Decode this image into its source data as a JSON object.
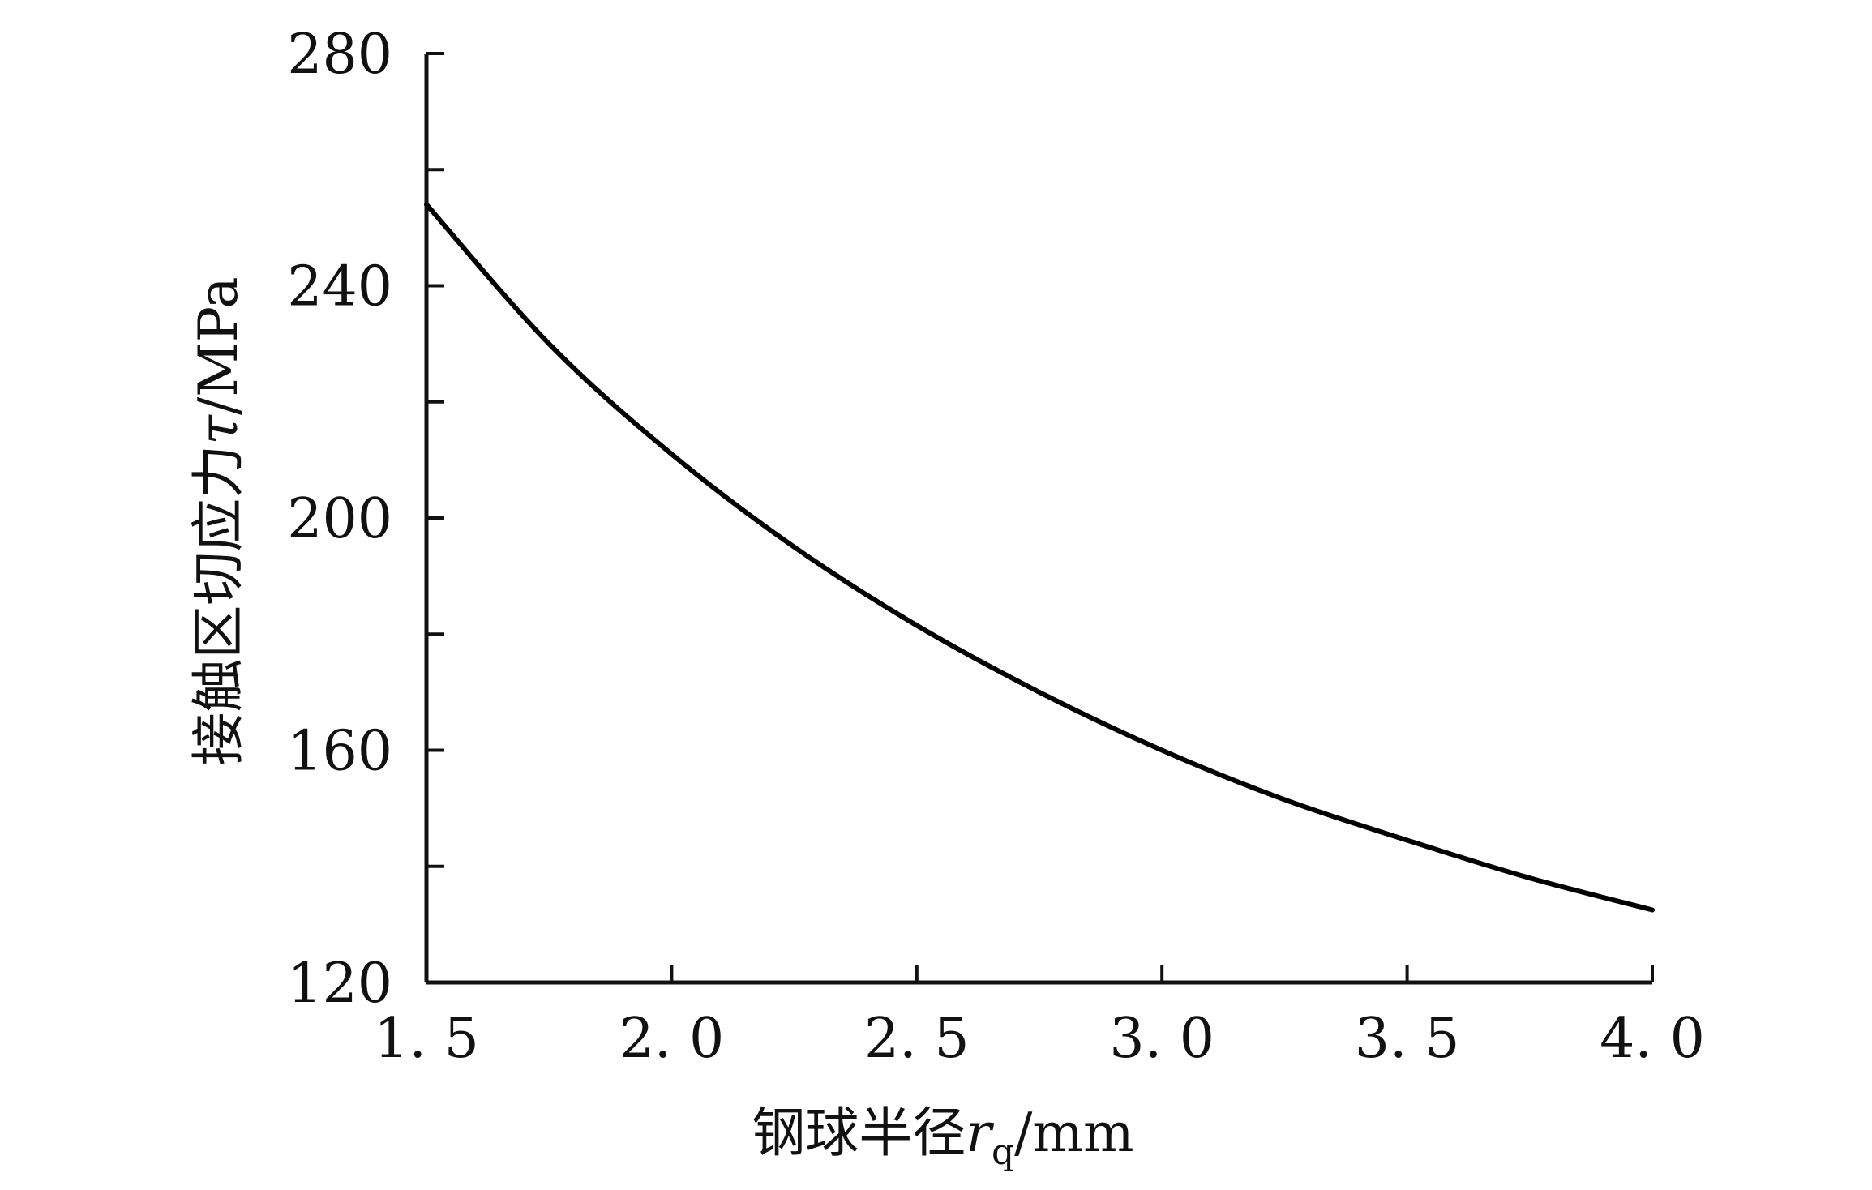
{
  "chart_data": {
    "type": "line",
    "xlabel_prefix": "钢球半径",
    "xlabel_var": "r",
    "xlabel_sub": "q",
    "xlabel_unit": "/mm",
    "ylabel_prefix": "接触区切应力",
    "ylabel_var": "τ",
    "ylabel_unit": "/MPa",
    "xlim": [
      1.5,
      4.0
    ],
    "ylim": [
      120,
      280
    ],
    "xticks": [
      1.5,
      2.0,
      2.5,
      3.0,
      3.5,
      4.0
    ],
    "xtick_labels": [
      "1. 5",
      "2. 0",
      "2. 5",
      "3. 0",
      "3. 5",
      "4. 0"
    ],
    "yticks": [
      120,
      160,
      200,
      240,
      280
    ],
    "ytick_labels": [
      "120",
      "160",
      "200",
      "240",
      "280"
    ],
    "y_minor_ticks": [
      140,
      180,
      220,
      260
    ],
    "grid": false,
    "series": [
      {
        "color": "#000000",
        "x": [
          1.5,
          1.75,
          2.0,
          2.25,
          2.5,
          2.75,
          3.0,
          3.25,
          3.5,
          3.75,
          4.0
        ],
        "y": [
          254.0,
          230.0,
          211.0,
          195.0,
          181.5,
          170.0,
          160.0,
          151.5,
          144.5,
          138.0,
          132.5
        ]
      }
    ]
  }
}
